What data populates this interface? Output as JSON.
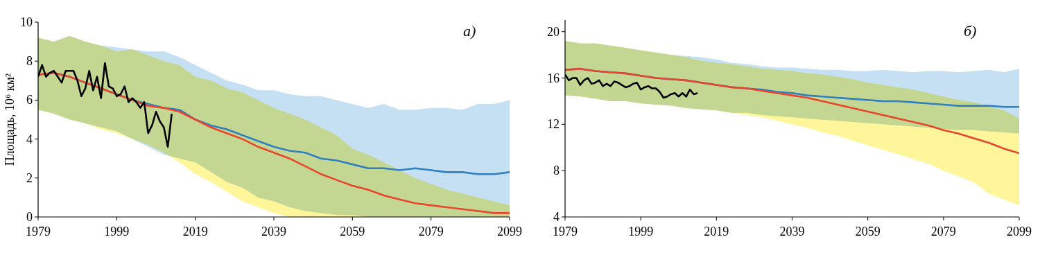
{
  "chart_data": [
    {
      "type": "line",
      "title": "а)",
      "y_label": "Площадь, 10⁶ км²",
      "xlim": [
        1979,
        2099
      ],
      "xticks": [
        1979,
        1999,
        2019,
        2039,
        2059,
        2079,
        2099
      ],
      "ylim": [
        0,
        10
      ],
      "yticks": [
        0,
        2,
        4,
        6,
        8,
        10
      ],
      "series": [
        {
          "type": "band",
          "color": "#c4e0f2",
          "x": [
            1979,
            1983,
            1987,
            1991,
            1995,
            1999,
            2003,
            2007,
            2011,
            2015,
            2019,
            2023,
            2027,
            2031,
            2035,
            2039,
            2043,
            2047,
            2051,
            2055,
            2059,
            2063,
            2067,
            2071,
            2075,
            2079,
            2083,
            2087,
            2091,
            2095,
            2099
          ],
          "values": [
            9.2,
            9.0,
            9.3,
            9.0,
            8.8,
            8.7,
            8.6,
            8.5,
            8.5,
            8.2,
            7.8,
            7.4,
            7.0,
            6.8,
            6.5,
            6.5,
            6.3,
            6.2,
            6.2,
            6.0,
            5.8,
            5.6,
            5.8,
            5.5,
            5.5,
            5.6,
            5.6,
            5.5,
            5.8,
            5.8,
            6.0
          ],
          "lower": [
            5.5,
            5.3,
            5.0,
            4.8,
            4.6,
            4.4,
            4.0,
            3.6,
            3.2,
            3.0,
            2.8,
            2.3,
            1.8,
            1.5,
            1.0,
            0.8,
            0.5,
            0.3,
            0.2,
            0.1,
            0.1,
            0,
            0,
            0,
            0,
            0,
            0,
            0,
            0,
            0,
            0
          ]
        },
        {
          "type": "band",
          "color": "#fff59a",
          "x": [
            1979,
            1983,
            1987,
            1991,
            1995,
            1999,
            2003,
            2007,
            2011,
            2015,
            2019,
            2023,
            2027,
            2031,
            2035,
            2039,
            2043,
            2047,
            2051,
            2055,
            2059,
            2063,
            2067,
            2071,
            2075,
            2079,
            2083,
            2087,
            2091,
            2095,
            2099
          ],
          "values": [
            9.2,
            9.0,
            9.3,
            9.0,
            8.8,
            8.5,
            8.6,
            8.3,
            8.0,
            7.8,
            7.2,
            7.0,
            6.6,
            6.4,
            6.0,
            5.6,
            5.3,
            5.0,
            4.6,
            4.2,
            3.5,
            3.2,
            2.8,
            2.4,
            2.0,
            1.7,
            1.4,
            1.2,
            1.0,
            0.8,
            0.6
          ],
          "lower": [
            5.5,
            5.3,
            5.0,
            4.8,
            4.5,
            4.3,
            4.0,
            3.7,
            3.3,
            2.8,
            2.2,
            1.8,
            1.3,
            0.8,
            0.5,
            0.2,
            0,
            0,
            0,
            0,
            0,
            0,
            0,
            0,
            0,
            0,
            0,
            0,
            0,
            0,
            0
          ]
        },
        {
          "type": "line",
          "color": "#2f7fc1",
          "x": [
            1979,
            1983,
            1987,
            1991,
            1995,
            1999,
            2003,
            2007,
            2011,
            2015,
            2019,
            2023,
            2027,
            2031,
            2035,
            2039,
            2043,
            2047,
            2051,
            2055,
            2059,
            2063,
            2067,
            2071,
            2075,
            2079,
            2083,
            2087,
            2091,
            2095,
            2099
          ],
          "values": [
            7.3,
            7.4,
            7.2,
            6.9,
            6.6,
            6.3,
            6.0,
            5.8,
            5.6,
            5.5,
            5.0,
            4.7,
            4.5,
            4.2,
            3.9,
            3.6,
            3.4,
            3.3,
            3.0,
            2.9,
            2.7,
            2.5,
            2.5,
            2.4,
            2.5,
            2.4,
            2.3,
            2.3,
            2.2,
            2.2,
            2.3
          ]
        },
        {
          "type": "line",
          "color": "#e8452c",
          "x": [
            1979,
            1983,
            1987,
            1991,
            1995,
            1999,
            2003,
            2007,
            2011,
            2015,
            2019,
            2023,
            2027,
            2031,
            2035,
            2039,
            2043,
            2047,
            2051,
            2055,
            2059,
            2063,
            2067,
            2071,
            2075,
            2079,
            2083,
            2087,
            2091,
            2095,
            2099
          ],
          "values": [
            7.3,
            7.4,
            7.2,
            6.9,
            6.6,
            6.3,
            6.0,
            5.7,
            5.6,
            5.4,
            5.0,
            4.6,
            4.3,
            4.0,
            3.6,
            3.3,
            3.0,
            2.6,
            2.2,
            1.9,
            1.6,
            1.4,
            1.1,
            0.9,
            0.7,
            0.6,
            0.5,
            0.4,
            0.3,
            0.2,
            0.2
          ]
        },
        {
          "type": "line",
          "color": "#000000",
          "x": [
            1979,
            1980,
            1981,
            1982,
            1983,
            1984,
            1985,
            1986,
            1987,
            1988,
            1989,
            1990,
            1991,
            1992,
            1993,
            1994,
            1995,
            1996,
            1997,
            1998,
            1999,
            2000,
            2001,
            2002,
            2003,
            2004,
            2005,
            2006,
            2007,
            2008,
            2009,
            2010,
            2011,
            2012,
            2013
          ],
          "values": [
            7.2,
            7.8,
            7.2,
            7.4,
            7.5,
            7.2,
            6.9,
            7.5,
            7.5,
            7.5,
            7.0,
            6.2,
            6.6,
            7.5,
            6.5,
            7.2,
            6.1,
            7.9,
            6.7,
            6.6,
            6.2,
            6.3,
            6.7,
            5.9,
            6.1,
            5.9,
            5.6,
            5.9,
            4.3,
            4.7,
            5.4,
            4.9,
            4.6,
            3.6,
            5.3
          ]
        }
      ]
    },
    {
      "type": "line",
      "title": "б)",
      "xlim": [
        1979,
        2099
      ],
      "xticks": [
        1979,
        1999,
        2019,
        2039,
        2059,
        2079,
        2099
      ],
      "ylim": [
        4,
        21
      ],
      "yticks": [
        4,
        8,
        12,
        16,
        20
      ],
      "series": [
        {
          "type": "band",
          "color": "#c4e0f2",
          "x": [
            1979,
            1983,
            1987,
            1991,
            1995,
            1999,
            2003,
            2007,
            2011,
            2015,
            2019,
            2023,
            2027,
            2031,
            2035,
            2039,
            2043,
            2047,
            2051,
            2055,
            2059,
            2063,
            2067,
            2071,
            2075,
            2079,
            2083,
            2087,
            2091,
            2095,
            2099
          ],
          "values": [
            19.2,
            19.0,
            19.0,
            18.8,
            18.6,
            18.4,
            18.2,
            18.0,
            17.9,
            17.8,
            17.6,
            17.3,
            17.2,
            17.0,
            16.9,
            16.9,
            16.8,
            16.7,
            16.7,
            16.6,
            16.6,
            16.7,
            16.6,
            16.5,
            16.6,
            16.6,
            16.5,
            16.6,
            16.7,
            16.5,
            16.8
          ],
          "lower": [
            14.5,
            14.4,
            14.2,
            14.0,
            14.0,
            13.8,
            13.7,
            13.6,
            13.4,
            13.3,
            13.2,
            13.0,
            13.0,
            12.8,
            12.7,
            12.6,
            12.5,
            12.4,
            12.3,
            12.2,
            12.1,
            12.0,
            11.9,
            11.8,
            11.7,
            11.6,
            11.5,
            11.5,
            11.4,
            11.3,
            11.2
          ]
        },
        {
          "type": "band",
          "color": "#fff59a",
          "x": [
            1979,
            1983,
            1987,
            1991,
            1995,
            1999,
            2003,
            2007,
            2011,
            2015,
            2019,
            2023,
            2027,
            2031,
            2035,
            2039,
            2043,
            2047,
            2051,
            2055,
            2059,
            2063,
            2067,
            2071,
            2075,
            2079,
            2083,
            2087,
            2091,
            2095,
            2099
          ],
          "values": [
            19.2,
            19.0,
            19.0,
            18.8,
            18.6,
            18.4,
            18.2,
            18.0,
            17.8,
            17.5,
            17.3,
            17.2,
            17.0,
            16.8,
            16.7,
            16.6,
            16.4,
            16.3,
            16.1,
            15.9,
            15.6,
            15.4,
            15.2,
            15.0,
            14.7,
            14.4,
            14.1,
            13.9,
            13.5,
            13.2,
            12.5
          ],
          "lower": [
            14.5,
            14.4,
            14.2,
            14.0,
            14.0,
            13.8,
            13.7,
            13.6,
            13.4,
            13.3,
            13.2,
            13.0,
            12.8,
            12.6,
            12.3,
            12.0,
            11.7,
            11.3,
            11.0,
            10.6,
            10.2,
            9.8,
            9.4,
            9.0,
            8.6,
            8.0,
            7.5,
            7.0,
            6.0,
            5.5,
            5.0
          ]
        },
        {
          "type": "line",
          "color": "#2f7fc1",
          "x": [
            1979,
            1983,
            1987,
            1991,
            1995,
            1999,
            2003,
            2007,
            2011,
            2015,
            2019,
            2023,
            2027,
            2031,
            2035,
            2039,
            2043,
            2047,
            2051,
            2055,
            2059,
            2063,
            2067,
            2071,
            2075,
            2079,
            2083,
            2087,
            2091,
            2095,
            2099
          ],
          "values": [
            16.7,
            16.8,
            16.6,
            16.5,
            16.4,
            16.2,
            16.0,
            15.9,
            15.8,
            15.6,
            15.4,
            15.2,
            15.1,
            15.0,
            14.8,
            14.7,
            14.5,
            14.4,
            14.3,
            14.2,
            14.1,
            14.0,
            14.0,
            13.9,
            13.8,
            13.7,
            13.6,
            13.6,
            13.6,
            13.5,
            13.5
          ]
        },
        {
          "type": "line",
          "color": "#e8452c",
          "x": [
            1979,
            1983,
            1987,
            1991,
            1995,
            1999,
            2003,
            2007,
            2011,
            2015,
            2019,
            2023,
            2027,
            2031,
            2035,
            2039,
            2043,
            2047,
            2051,
            2055,
            2059,
            2063,
            2067,
            2071,
            2075,
            2079,
            2083,
            2087,
            2091,
            2095,
            2099
          ],
          "values": [
            16.7,
            16.8,
            16.6,
            16.5,
            16.4,
            16.2,
            16.0,
            15.9,
            15.8,
            15.6,
            15.4,
            15.2,
            15.1,
            14.9,
            14.7,
            14.5,
            14.3,
            14.0,
            13.7,
            13.4,
            13.1,
            12.8,
            12.5,
            12.2,
            11.9,
            11.5,
            11.2,
            10.8,
            10.4,
            9.9,
            9.5
          ]
        },
        {
          "type": "line",
          "color": "#000000",
          "x": [
            1979,
            1980,
            1981,
            1982,
            1983,
            1984,
            1985,
            1986,
            1987,
            1988,
            1989,
            1990,
            1991,
            1992,
            1993,
            1994,
            1995,
            1996,
            1997,
            1998,
            1999,
            2000,
            2001,
            2002,
            2003,
            2004,
            2005,
            2006,
            2007,
            2008,
            2009,
            2010,
            2011,
            2012,
            2013,
            2014
          ],
          "values": [
            16.3,
            15.8,
            16.0,
            16.0,
            15.4,
            15.8,
            16.0,
            15.5,
            15.6,
            15.8,
            15.3,
            15.5,
            15.3,
            15.7,
            15.6,
            15.4,
            15.2,
            15.3,
            15.5,
            15.6,
            15.0,
            15.2,
            15.3,
            15.1,
            15.1,
            14.8,
            14.3,
            14.4,
            14.6,
            14.7,
            14.4,
            14.7,
            14.4,
            15.0,
            14.6,
            14.7
          ]
        }
      ]
    }
  ]
}
